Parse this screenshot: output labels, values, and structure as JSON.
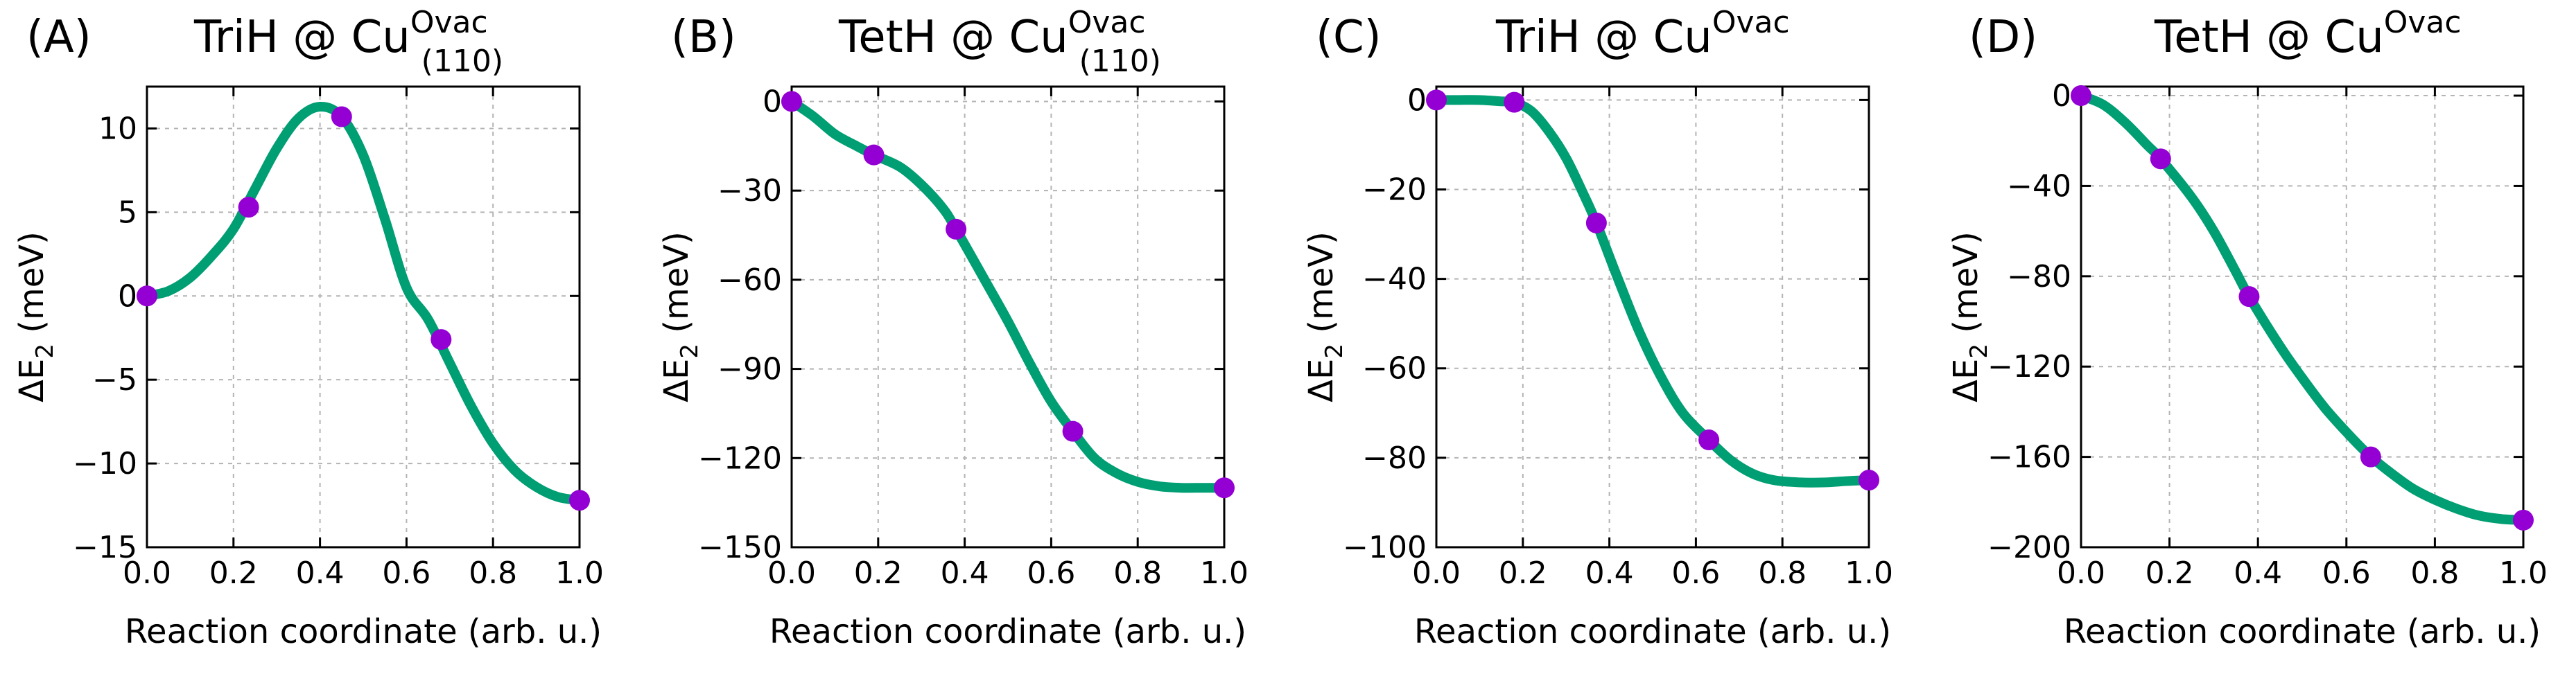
{
  "colors": {
    "curve": "#009e73",
    "points": "#9400d3"
  },
  "chart_data": [
    {
      "type": "line",
      "panel_label": "(A)",
      "title": {
        "main": "TriH @ Cu",
        "sup": "Ovac",
        "sub": "(110)"
      },
      "xlabel": "Reaction coordinate (arb. u.)",
      "ylabel": {
        "prefix": "ΔE",
        "sub": "2",
        "suffix": " (meV)"
      },
      "xlim": [
        0,
        1
      ],
      "ylim": [
        -15,
        12.5
      ],
      "xticks": [
        0,
        0.2,
        0.4,
        0.6,
        0.8,
        1.0
      ],
      "xtick_labels": [
        "0.0",
        "0.2",
        "0.4",
        "0.6",
        "0.8",
        "1.0"
      ],
      "yticks": [
        -15,
        -10,
        -5,
        0,
        5,
        10
      ],
      "ytick_labels": [
        "−15",
        "−10",
        "−5",
        "0",
        "5",
        "10"
      ],
      "grid": true,
      "curve": {
        "x": [
          0,
          0.05,
          0.1,
          0.15,
          0.2,
          0.25,
          0.3,
          0.35,
          0.4,
          0.45,
          0.5,
          0.55,
          0.6,
          0.65,
          0.7,
          0.75,
          0.8,
          0.85,
          0.9,
          0.95,
          1.0
        ],
        "y": [
          0,
          0.3,
          1.1,
          2.4,
          4.0,
          6.4,
          8.8,
          10.6,
          11.3,
          10.7,
          8.4,
          4.6,
          0.5,
          -1.4,
          -4.0,
          -6.6,
          -8.8,
          -10.4,
          -11.4,
          -12.0,
          -12.2
        ]
      },
      "points": {
        "x": [
          0,
          0.235,
          0.45,
          0.68,
          1.0
        ],
        "y": [
          0,
          5.3,
          10.7,
          -2.6,
          -12.2
        ]
      }
    },
    {
      "type": "line",
      "panel_label": "(B)",
      "title": {
        "main": "TetH @ Cu",
        "sup": "Ovac",
        "sub": "(110)"
      },
      "xlabel": "Reaction coordinate (arb. u.)",
      "ylabel": {
        "prefix": "ΔE",
        "sub": "2",
        "suffix": " (meV)"
      },
      "xlim": [
        0,
        1
      ],
      "ylim": [
        -150,
        5
      ],
      "xticks": [
        0,
        0.2,
        0.4,
        0.6,
        0.8,
        1.0
      ],
      "xtick_labels": [
        "0.0",
        "0.2",
        "0.4",
        "0.6",
        "0.8",
        "1.0"
      ],
      "yticks": [
        -150,
        -120,
        -90,
        -60,
        -30,
        0
      ],
      "ytick_labels": [
        "−150",
        "−120",
        "−90",
        "−60",
        "−30",
        "0"
      ],
      "grid": true,
      "curve": {
        "x": [
          0,
          0.05,
          0.1,
          0.15,
          0.19,
          0.25,
          0.3,
          0.35,
          0.38,
          0.45,
          0.5,
          0.55,
          0.6,
          0.65,
          0.7,
          0.75,
          0.8,
          0.85,
          0.9,
          0.95,
          1.0
        ],
        "y": [
          0,
          -5,
          -11,
          -15,
          -18,
          -22,
          -28,
          -36,
          -43,
          -61,
          -74,
          -88,
          -101,
          -111,
          -120,
          -125,
          -128,
          -129.5,
          -130,
          -130,
          -130
        ]
      },
      "points": {
        "x": [
          0,
          0.19,
          0.38,
          0.65,
          1.0
        ],
        "y": [
          0,
          -18,
          -43,
          -111,
          -130
        ]
      }
    },
    {
      "type": "line",
      "panel_label": "(C)",
      "title": {
        "main": "TriH @ Cu",
        "sup": "Ovac",
        "sub": ""
      },
      "xlabel": "Reaction coordinate (arb. u.)",
      "ylabel": {
        "prefix": "ΔE",
        "sub": "2",
        "suffix": " (meV)"
      },
      "xlim": [
        0,
        1
      ],
      "ylim": [
        -100,
        3
      ],
      "xticks": [
        0,
        0.2,
        0.4,
        0.6,
        0.8,
        1.0
      ],
      "xtick_labels": [
        "0.0",
        "0.2",
        "0.4",
        "0.6",
        "0.8",
        "1.0"
      ],
      "yticks": [
        -100,
        -80,
        -60,
        -40,
        -20,
        0
      ],
      "ytick_labels": [
        "−100",
        "−80",
        "−60",
        "−40",
        "−20",
        "0"
      ],
      "grid": true,
      "curve": {
        "x": [
          0,
          0.05,
          0.1,
          0.15,
          0.18,
          0.22,
          0.26,
          0.3,
          0.34,
          0.37,
          0.42,
          0.47,
          0.52,
          0.57,
          0.63,
          0.68,
          0.73,
          0.78,
          0.84,
          0.9,
          0.95,
          1.0
        ],
        "y": [
          0,
          0,
          0,
          -0.3,
          -0.5,
          -2.5,
          -7,
          -13,
          -21,
          -27.5,
          -40,
          -52,
          -62,
          -70,
          -76,
          -80.5,
          -83.5,
          -85,
          -85.5,
          -85.5,
          -85.2,
          -85
        ]
      },
      "points": {
        "x": [
          0,
          0.18,
          0.37,
          0.63,
          1.0
        ],
        "y": [
          0,
          -0.5,
          -27.5,
          -76,
          -85
        ]
      }
    },
    {
      "type": "line",
      "panel_label": "(D)",
      "title": {
        "main": "TetH @ Cu",
        "sup": "Ovac",
        "sub": ""
      },
      "xlabel": "Reaction coordinate (arb. u.)",
      "ylabel": {
        "prefix": "ΔE",
        "sub": "2",
        "suffix": " (meV)"
      },
      "xlim": [
        0,
        1
      ],
      "ylim": [
        -200,
        4
      ],
      "xticks": [
        0,
        0.2,
        0.4,
        0.6,
        0.8,
        1.0
      ],
      "xtick_labels": [
        "0.0",
        "0.2",
        "0.4",
        "0.6",
        "0.8",
        "1.0"
      ],
      "yticks": [
        -200,
        -160,
        -120,
        -80,
        -40,
        0
      ],
      "ytick_labels": [
        "−200",
        "−160",
        "−120",
        "−80",
        "−40",
        "0"
      ],
      "grid": true,
      "curve": {
        "x": [
          0,
          0.05,
          0.1,
          0.15,
          0.18,
          0.25,
          0.3,
          0.35,
          0.38,
          0.45,
          0.5,
          0.55,
          0.6,
          0.65,
          0.7,
          0.75,
          0.8,
          0.85,
          0.9,
          0.95,
          1.0
        ],
        "y": [
          0,
          -4,
          -12,
          -22,
          -28,
          -45,
          -60,
          -78,
          -89,
          -111,
          -125,
          -138,
          -149,
          -159,
          -167,
          -174,
          -179,
          -183,
          -186,
          -187.5,
          -188
        ]
      },
      "points": {
        "x": [
          0,
          0.18,
          0.38,
          0.655,
          1.0
        ],
        "y": [
          0,
          -28,
          -89,
          -160,
          -188
        ]
      }
    }
  ]
}
